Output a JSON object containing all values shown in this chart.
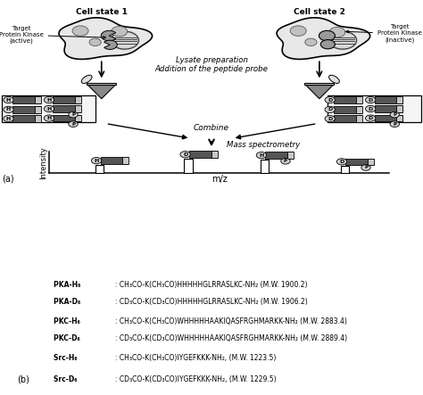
{
  "title_left": "Cell state 1",
  "title_right": "Cell state 2",
  "label_active": "Target\nProtein Kinase\n(active)",
  "label_inactive": "Target\nProtein Kinase\n(inactive)",
  "italic_text1": "Lysate preparation",
  "italic_text2": "Addition of the peptide probe",
  "italic_combine": "Combine",
  "italic_ms": "Mass spectrometry",
  "xlabel": "m/z",
  "ylabel": "Intensity",
  "label_a": "(a)",
  "label_b": "(b)",
  "text_lines": [
    "PKA-H₆ : CH₃CO-K(CH₃CO)HHHHHGLRRASLKC-NH₂ (M.W. 1900.2)",
    "PKA-D₆ : CD₃CO-K(CD₃CO)HHHHHGLRRASLKC-NH₂ (M.W. 1906.2)",
    "PKC-H₆ : CH₃CO-K(CH₃CO)WHHHHHAAKIQASFRGHMARKK-NH₂ (M.W. 2883.4)",
    "PKC-D₆ : CD₃CO-K(CD₃CO)WHHHHHAAKIQASFRGHMARKK-NH₂ (M.W. 2889.4)",
    "Src-H₆ : CH₃CO-K(CH₃CO)IYGEFKKK-NH₂, (M.W. 1223.5)",
    "Src-D₆ : CD₃CO-K(CD₃CO)IYGEFKKK-NH₂, (M.W. 1229.5)"
  ],
  "bg_color": "#ffffff",
  "fig_width": 4.74,
  "fig_height": 4.43
}
